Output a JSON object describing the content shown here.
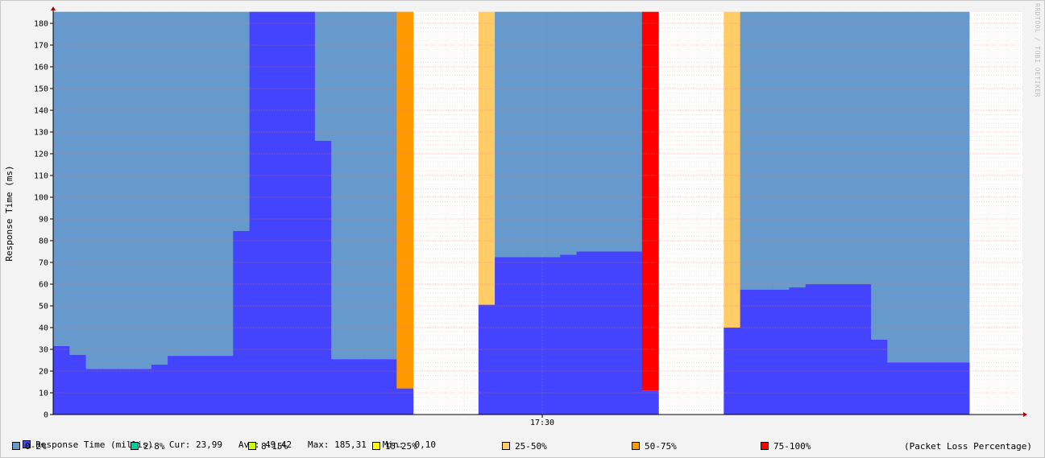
{
  "watermark": "RRDTOOL / TOBI OETIKER",
  "chart_data": {
    "type": "area",
    "ylabel": "Response Time (ms)",
    "ylim": [
      0,
      185.31
    ],
    "y_ticks": [
      0,
      10,
      20,
      30,
      40,
      50,
      60,
      70,
      80,
      90,
      100,
      110,
      120,
      130,
      140,
      150,
      160,
      170,
      180
    ],
    "x_tick_label": "17:30",
    "series": [
      {
        "name": "Response Time (millis)",
        "color": "#4444ff",
        "values": [
          31.5,
          27.5,
          21,
          21,
          21,
          21,
          23,
          27,
          27,
          27,
          27,
          84.5,
          185.31,
          185.31,
          185.31,
          185.31,
          126,
          25.5,
          25.5,
          25.5,
          25.5,
          12,
          null,
          null,
          null,
          null,
          50.5,
          72.5,
          72.5,
          72.5,
          72.5,
          73.5,
          75,
          75,
          75,
          75,
          11,
          null,
          null,
          null,
          null,
          40,
          57.5,
          57.5,
          57.5,
          58.5,
          60,
          60,
          60,
          60,
          34.5,
          24,
          24,
          24,
          24,
          24
        ]
      },
      {
        "name": "Packet Loss Percentage",
        "band_colors": [
          "#6699cc",
          "#ff9900",
          "#ffcc66",
          "#ff0000"
        ],
        "values": [
          0,
          0,
          0,
          0,
          0,
          0,
          0,
          0,
          0,
          0,
          0,
          0,
          0,
          0,
          0,
          0,
          0,
          0,
          0,
          0,
          0,
          1,
          null,
          null,
          null,
          null,
          2,
          0,
          0,
          0,
          0,
          0,
          0,
          0,
          0,
          0,
          3,
          null,
          null,
          null,
          null,
          2,
          0,
          0,
          0,
          0,
          0,
          0,
          0,
          0,
          0,
          0,
          0,
          0,
          0,
          0
        ]
      }
    ]
  },
  "legend": {
    "main": {
      "label": "Response Time (millis)",
      "color": "#4444ff",
      "stats": "Cur: 23,99   Avg: 49,42   Max: 185,31   Min:  0,10"
    },
    "packet_loss": [
      {
        "label": "0-2%",
        "color": "#6699cc"
      },
      {
        "label": "2-8%",
        "color": "#00cc99"
      },
      {
        "label": "8-15%",
        "color": "#ccff00"
      },
      {
        "label": "15-25%",
        "color": "#ffff00"
      },
      {
        "label": "25-50%",
        "color": "#ffcc66"
      },
      {
        "label": "50-75%",
        "color": "#ff9900"
      },
      {
        "label": "75-100%",
        "color": "#ff0000"
      }
    ],
    "packet_loss_note": "(Packet Loss Percentage)"
  }
}
